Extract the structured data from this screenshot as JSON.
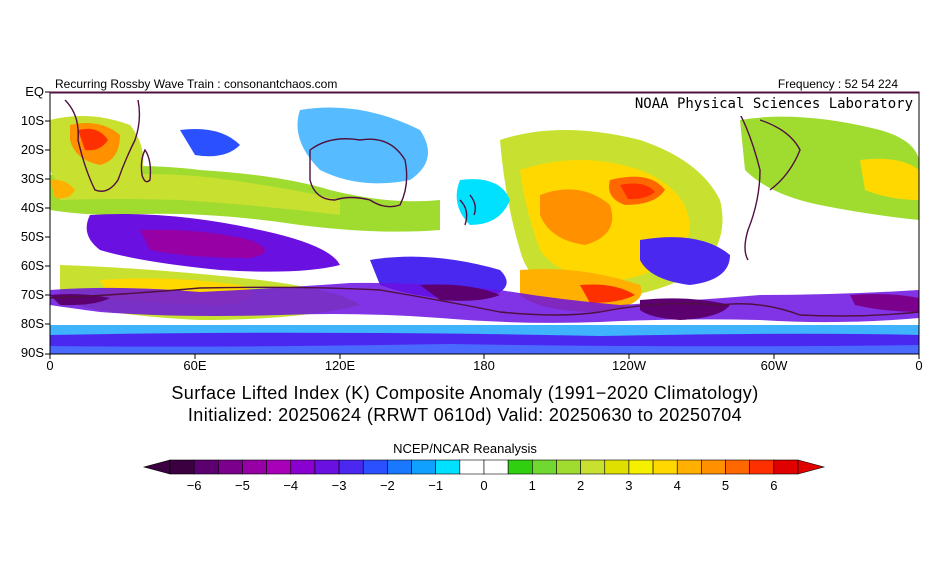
{
  "header": {
    "left": "Recurring Rossby Wave Train : consonantchaos.com",
    "right": "Frequency : 52 54 224",
    "lab": "NOAA Physical Sciences Laboratory"
  },
  "axes": {
    "y_labels": [
      "EQ",
      "10S",
      "20S",
      "30S",
      "40S",
      "50S",
      "60S",
      "70S",
      "80S",
      "90S"
    ],
    "x_labels": [
      "0",
      "60E",
      "120E",
      "180",
      "120W",
      "60W",
      "0"
    ]
  },
  "title": {
    "line1": "Surface Lifted Index (K) Composite Anomaly (1991−2020 Climatology)",
    "line2": "Initialized: 20250624 (RRWT 0610d) Valid: 20250630 to 20250704"
  },
  "source": "NCEP/NCAR Reanalysis",
  "colorbar": {
    "labels": [
      "−6",
      "−5",
      "−4",
      "−3",
      "−2",
      "−1",
      "0",
      "1",
      "2",
      "3",
      "4",
      "5",
      "6"
    ],
    "colors": [
      "#3a0040",
      "#5c0070",
      "#7b008c",
      "#9600a4",
      "#a800b8",
      "#8a00d0",
      "#6a10e0",
      "#4a28f0",
      "#2a50ff",
      "#1a78ff",
      "#10a0ff",
      "#00e0ff",
      "#ffffff",
      "#ffffff",
      "#30d010",
      "#70d830",
      "#a0dc30",
      "#c8e030",
      "#e0e000",
      "#f5f000",
      "#ffd800",
      "#ffb000",
      "#ff9000",
      "#ff6800",
      "#ff3000",
      "#e00000"
    ]
  },
  "colors": {
    "ocean_bg": "#ffffff",
    "coast": "#501040"
  }
}
